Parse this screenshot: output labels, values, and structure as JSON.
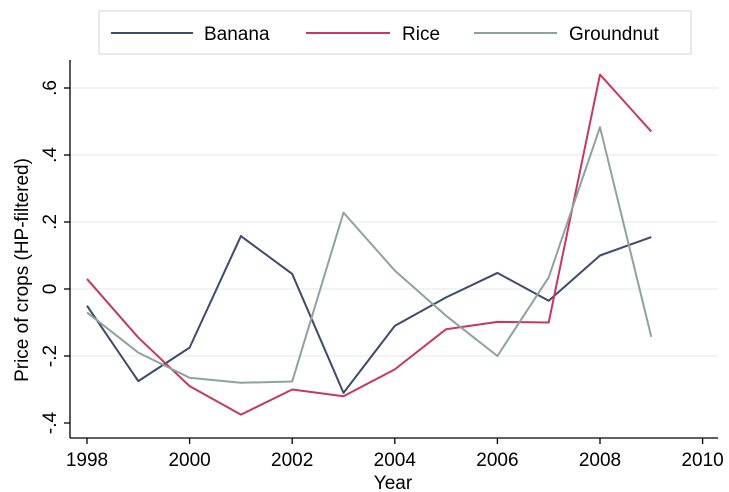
{
  "chart_data": {
    "type": "line",
    "xlabel": "Year",
    "ylabel": "Price of crops (HP-filtered)",
    "xlim": [
      1998,
      2010
    ],
    "ylim": [
      -0.4,
      0.6
    ],
    "x_ticks": [
      1998,
      2000,
      2002,
      2004,
      2006,
      2008,
      2010
    ],
    "x_tick_labels": [
      "1998",
      "2000",
      "2002",
      "2004",
      "2006",
      "2008",
      "2010"
    ],
    "y_ticks": [
      -0.4,
      -0.2,
      0,
      0.2,
      0.4,
      0.6
    ],
    "y_tick_labels": [
      "-.4",
      "-.2",
      "0",
      ".2",
      ".4",
      ".6"
    ],
    "grid": true,
    "legend_position": "top",
    "x": [
      1998,
      1999,
      2000,
      2001,
      2002,
      2003,
      2004,
      2005,
      2006,
      2007,
      2008,
      2009
    ],
    "series": [
      {
        "name": "Banana",
        "color": "#3e4a6e",
        "values": [
          -0.05,
          -0.275,
          -0.175,
          0.158,
          0.045,
          -0.31,
          -0.11,
          -0.025,
          0.048,
          -0.035,
          0.1,
          0.155
        ]
      },
      {
        "name": "Rice",
        "color": "#c8385c",
        "values": [
          0.03,
          -0.145,
          -0.29,
          -0.375,
          -0.3,
          -0.32,
          -0.24,
          -0.12,
          -0.098,
          -0.1,
          0.64,
          0.47
        ]
      },
      {
        "name": "Groundnut",
        "color": "#8fa39b",
        "values": [
          -0.07,
          -0.19,
          -0.265,
          -0.28,
          -0.276,
          0.228,
          0.055,
          -0.08,
          -0.2,
          0.035,
          0.483,
          -0.143
        ]
      }
    ]
  }
}
